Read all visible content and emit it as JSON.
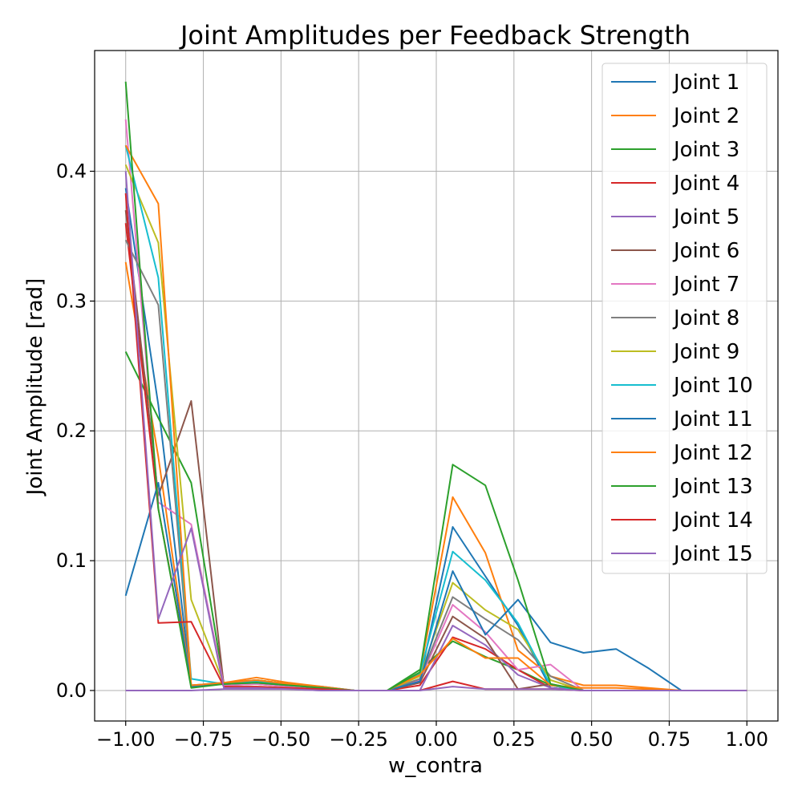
{
  "chart_data": {
    "type": "line",
    "title": "Joint Amplitudes per Feedback Strength",
    "xlabel": "w_contra",
    "ylabel": "Joint Amplitude [rad]",
    "xlim": [
      -1.1,
      1.1
    ],
    "ylim": [
      -0.0235,
      0.493
    ],
    "xticks": [
      -1.0,
      -0.75,
      -0.5,
      -0.25,
      0.0,
      0.25,
      0.5,
      0.75,
      1.0
    ],
    "xtick_labels": [
      "−1.00",
      "−0.75",
      "−0.50",
      "−0.25",
      "0.00",
      "0.25",
      "0.50",
      "0.75",
      "1.00"
    ],
    "yticks": [
      0.0,
      0.1,
      0.2,
      0.3,
      0.4
    ],
    "ytick_labels": [
      "0.0",
      "0.1",
      "0.2",
      "0.3",
      "0.4"
    ],
    "grid": true,
    "legend_position": "top-right",
    "x": [
      -1.0,
      -0.895,
      -0.789,
      -0.684,
      -0.579,
      -0.474,
      -0.368,
      -0.263,
      -0.158,
      -0.053,
      0.053,
      0.158,
      0.263,
      0.368,
      0.474,
      0.579,
      0.684,
      0.789,
      0.895,
      1.0
    ],
    "series": [
      {
        "name": "Joint 1",
        "color": "#1f77b4",
        "values": [
          0.387,
          0.22,
          0.004,
          0.006,
          0.008,
          0.005,
          0.003,
          0.0,
          0.0,
          0.008,
          0.126,
          0.088,
          0.05,
          0.002,
          0.0,
          0.0,
          0.0,
          0.0,
          0.0,
          0.0
        ]
      },
      {
        "name": "Joint 2",
        "color": "#ff7f0e",
        "values": [
          0.33,
          0.18,
          0.003,
          0.006,
          0.01,
          0.006,
          0.003,
          0.0,
          0.0,
          0.013,
          0.149,
          0.106,
          0.031,
          0.011,
          0.004,
          0.004,
          0.002,
          0.0,
          0.0,
          0.0
        ]
      },
      {
        "name": "Joint 3",
        "color": "#2ca02c",
        "values": [
          0.261,
          0.21,
          0.16,
          0.005,
          0.008,
          0.005,
          0.002,
          0.0,
          0.0,
          0.016,
          0.038,
          0.026,
          0.016,
          0.004,
          0.0,
          0.0,
          0.0,
          0.0,
          0.0,
          0.0
        ]
      },
      {
        "name": "Joint 4",
        "color": "#d62728",
        "values": [
          0.36,
          0.14,
          0.004,
          0.005,
          0.006,
          0.004,
          0.002,
          0.0,
          0.0,
          0.004,
          0.041,
          0.032,
          0.016,
          0.002,
          0.0,
          0.0,
          0.0,
          0.0,
          0.0,
          0.0
        ]
      },
      {
        "name": "Joint 5",
        "color": "#9467bd",
        "values": [
          0.0,
          0.0,
          0.0,
          0.001,
          0.001,
          0.001,
          0.0,
          0.0,
          0.0,
          0.0,
          0.05,
          0.035,
          0.012,
          0.002,
          0.0,
          0.0,
          0.0,
          0.0,
          0.0,
          0.0
        ]
      },
      {
        "name": "Joint 6",
        "color": "#8c564b",
        "values": [
          0.37,
          0.15,
          0.223,
          0.004,
          0.005,
          0.003,
          0.001,
          0.0,
          0.0,
          0.006,
          0.057,
          0.04,
          0.001,
          0.005,
          0.0,
          0.0,
          0.0,
          0.0,
          0.0,
          0.0
        ]
      },
      {
        "name": "Joint 7",
        "color": "#e377c2",
        "values": [
          0.44,
          0.145,
          0.128,
          0.004,
          0.005,
          0.003,
          0.001,
          0.0,
          0.0,
          0.008,
          0.066,
          0.045,
          0.016,
          0.02,
          0.0,
          0.0,
          0.0,
          0.0,
          0.0,
          0.0
        ]
      },
      {
        "name": "Joint 8",
        "color": "#7f7f7f",
        "values": [
          0.347,
          0.297,
          0.004,
          0.005,
          0.006,
          0.004,
          0.002,
          0.0,
          0.0,
          0.009,
          0.072,
          0.055,
          0.039,
          0.011,
          0.0,
          0.0,
          0.0,
          0.0,
          0.0,
          0.0
        ]
      },
      {
        "name": "Joint 9",
        "color": "#bcbd22",
        "values": [
          0.405,
          0.345,
          0.07,
          0.005,
          0.006,
          0.004,
          0.002,
          0.0,
          0.0,
          0.011,
          0.083,
          0.062,
          0.047,
          0.008,
          0.0,
          0.0,
          0.0,
          0.0,
          0.0,
          0.0
        ]
      },
      {
        "name": "Joint 10",
        "color": "#17becf",
        "values": [
          0.42,
          0.318,
          0.009,
          0.005,
          0.007,
          0.004,
          0.002,
          0.0,
          0.0,
          0.013,
          0.107,
          0.085,
          0.052,
          0.004,
          0.0,
          0.0,
          0.0,
          0.0,
          0.0,
          0.0
        ]
      },
      {
        "name": "Joint 11",
        "color": "#1f77b4",
        "values": [
          0.073,
          0.16,
          0.003,
          0.005,
          0.006,
          0.004,
          0.002,
          0.0,
          0.0,
          0.007,
          0.092,
          0.043,
          0.07,
          0.037,
          0.029,
          0.032,
          0.017,
          0.0,
          0.0,
          0.0
        ]
      },
      {
        "name": "Joint 12",
        "color": "#ff7f0e",
        "values": [
          0.42,
          0.375,
          0.004,
          0.006,
          0.008,
          0.005,
          0.002,
          0.0,
          0.0,
          0.012,
          0.04,
          0.025,
          0.025,
          0.004,
          0.002,
          0.002,
          0.001,
          0.0,
          0.0,
          0.0
        ]
      },
      {
        "name": "Joint 13",
        "color": "#2ca02c",
        "values": [
          0.469,
          0.14,
          0.002,
          0.005,
          0.006,
          0.004,
          0.002,
          0.0,
          0.0,
          0.014,
          0.174,
          0.158,
          0.085,
          0.005,
          0.0,
          0.0,
          0.0,
          0.0,
          0.0,
          0.0
        ]
      },
      {
        "name": "Joint 14",
        "color": "#d62728",
        "values": [
          0.383,
          0.052,
          0.053,
          0.003,
          0.003,
          0.002,
          0.001,
          0.0,
          0.0,
          0.0,
          0.007,
          0.001,
          0.001,
          0.001,
          0.0,
          0.0,
          0.0,
          0.0,
          0.0,
          0.0
        ]
      },
      {
        "name": "Joint 15",
        "color": "#9467bd",
        "values": [
          0.4,
          0.055,
          0.125,
          0.002,
          0.002,
          0.001,
          0.0,
          0.0,
          0.0,
          0.0,
          0.003,
          0.001,
          0.001,
          0.001,
          0.0,
          0.0,
          0.0,
          0.0,
          0.0,
          0.0
        ]
      }
    ]
  }
}
